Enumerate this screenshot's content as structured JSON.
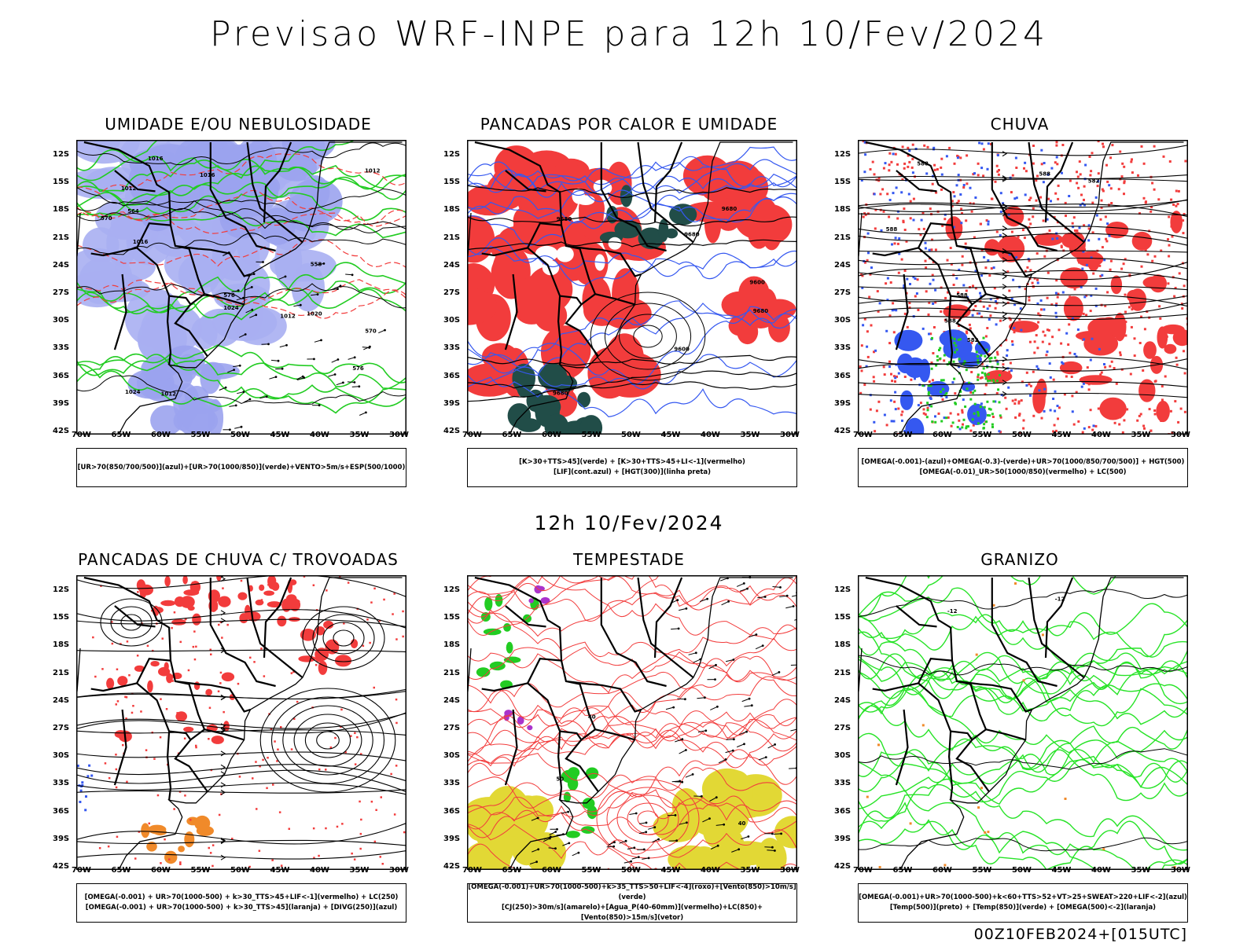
{
  "title": "Previsao WRF-INPE  para 12h 10/Fev/2024",
  "subtitle": "12h 10/Fev/2024",
  "footer": "00Z10FEB2024+[015UTC]",
  "axes": {
    "lat_ticks": [
      "12S",
      "15S",
      "18S",
      "21S",
      "24S",
      "27S",
      "30S",
      "33S",
      "36S",
      "39S",
      "42S"
    ],
    "lon_ticks": [
      "70W",
      "65W",
      "60W",
      "55W",
      "50W",
      "45W",
      "40W",
      "35W",
      "30W"
    ]
  },
  "panels": [
    {
      "id": "umidade",
      "title": "UMIDADE E/OU NEBULOSIDADE",
      "legend": [
        "[UR>70(850/700/500)](azul)+[UR>70(1000/850)](verde)+VENTO>5m/s+ESP(500/1000)"
      ],
      "contour_labels": [
        "1012",
        "1016",
        "1016",
        "1012",
        "1012",
        "1012",
        "1016",
        "1024",
        "1024",
        "1020",
        "570",
        "576",
        "564",
        "558",
        "570",
        "576"
      ]
    },
    {
      "id": "pancadas_calor",
      "title": "PANCADAS POR CALOR E UMIDADE",
      "legend": [
        "[K>30+TTS>45](verde) + [K>30+TTS>45+LI<-1](vermelho)",
        "[LIF](cont.azul) + [HGT(300)](linha preta)"
      ],
      "contour_labels": [
        "9680",
        "9600",
        "9680",
        "9680",
        "9680",
        "9680",
        "9600"
      ]
    },
    {
      "id": "chuva",
      "title": "CHUVA",
      "legend": [
        "[OMEGA(-0.001)-(azul)+OMEGA(-0.3)-(verde)+UR>70(1000/850/700/500)] + HGT(500)",
        "[OMEGA(-0.01)_UR>50(1000/850)(vermelho) + LC(500)"
      ],
      "contour_labels": [
        "588",
        "588",
        "588",
        "588",
        "582",
        "588",
        "582"
      ]
    },
    {
      "id": "pancadas_trovoadas",
      "title": "PANCADAS DE CHUVA C/ TROVOADAS",
      "legend": [
        "[OMEGA(-0.001) + UR>70(1000-500) + k>30_TTS>45+LIF<-1](vermelho) + LC(250)",
        "[OMEGA(-0.001) + UR>70(1000-500) + k>30_TTS>45](laranja) + [DIVG(250)](azul)"
      ],
      "contour_labels": []
    },
    {
      "id": "tempestade",
      "title": "TEMPESTADE",
      "legend": [
        "[OMEGA(-0.001)+UR>70(1000-500)+k>35_TTS>50+LIF<-4](roxo)+[Vento(850)>10m/s](verde)",
        "[CJ(250)>30m/s](amarelo)+[Agua_P(40-60mm)](vermelho)+LC(850)+[Vento(850)>15m/s](vetor)"
      ],
      "contour_labels": [
        "50",
        "40",
        "40"
      ]
    },
    {
      "id": "granizo",
      "title": "GRANIZO",
      "legend": [
        "[OMEGA(-0.001)+UR>70(1000-500)+k<60+TTS>52+VT>25+SWEAT>220+LIF<-2](azul)",
        "[Temp(500)](preto) + [Temp(850)](verde) + [OMEGA(500)<-2](laranja)"
      ],
      "contour_labels": [
        "-12",
        "-12"
      ]
    }
  ],
  "colors": {
    "red": "#f23c3c",
    "blue": "#3558f0",
    "lightblue": "#a9aff2",
    "lavender": "#9ba3ee",
    "green": "#22cc22",
    "brightgreen": "#27e327",
    "darkteal": "#214d48",
    "yellow": "#e2d835",
    "orange": "#f08a2a",
    "purple": "#aa33cc",
    "black": "#000000"
  }
}
